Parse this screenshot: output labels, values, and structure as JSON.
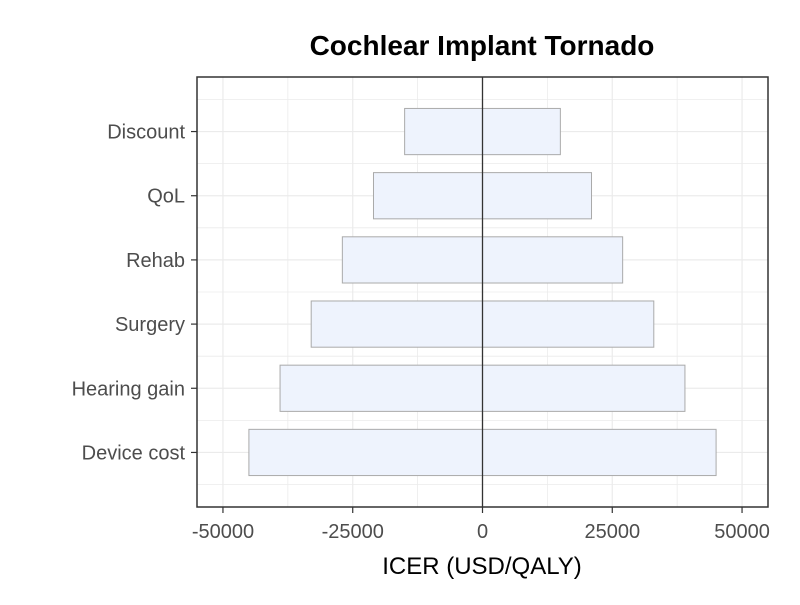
{
  "chart_data": {
    "type": "bar",
    "orientation": "horizontal",
    "title": "Cochlear Implant Tornado",
    "xlabel": "ICER (USD/QALY)",
    "ylabel": "",
    "xlim": [
      -55000,
      55000
    ],
    "xticks": [
      -50000,
      -25000,
      0,
      25000,
      50000
    ],
    "xtick_labels": [
      "-50000",
      "-25000",
      "0",
      "25000",
      "50000"
    ],
    "categories": [
      "Device cost",
      "Hearing gain",
      "Surgery",
      "Rehab",
      "QoL",
      "Discount"
    ],
    "series": [
      {
        "values_low": [
          -45000,
          -39000,
          -33000,
          -27000,
          -21000,
          -15000
        ],
        "values_high": [
          45000,
          39000,
          33000,
          27000,
          21000,
          15000
        ]
      }
    ],
    "grid": true,
    "colors": {
      "bar_fill": "#eef3fd",
      "bar_stroke": "#aaaaaa",
      "zero_line": "#333333",
      "grid": "#ebebeb",
      "panel_border": "#333333"
    }
  }
}
